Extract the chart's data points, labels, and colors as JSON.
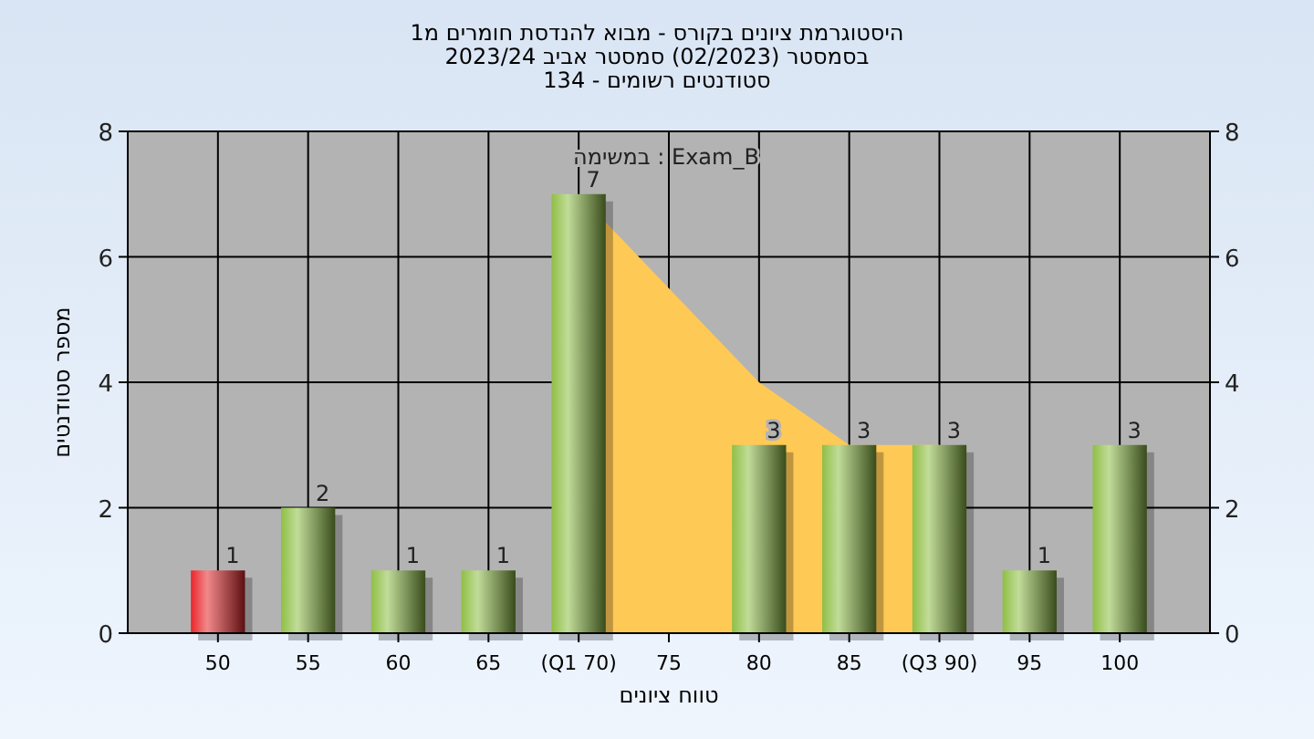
{
  "chart_data": {
    "type": "bar",
    "title": "היסטוגרמת ציונים בקורס - מבוא להנדסת חומרים מ1\nבסמסטר  (02/2023)  סמסטר אביב 2023/24\nסטודנטים רשומים - 134",
    "xlabel": "טווח ציונים",
    "ylabel": "מספר סטודנטים",
    "annotations": [
      "במשימה : Exam_B"
    ],
    "categories": [
      "50",
      "55",
      "60",
      "65",
      "(Q1 70)",
      "75",
      "80",
      "85",
      "(Q3 90)",
      "95",
      "100"
    ],
    "series": [
      {
        "type": "area",
        "color": "#ffc955",
        "values": [
          null,
          null,
          null,
          null,
          7,
          5.5,
          4,
          3,
          3,
          null,
          null
        ]
      },
      {
        "colors": [
          "#e8262b",
          "#8fbf45",
          "#8fbf45",
          "#8fbf45",
          "#8fbf45",
          "#8fbf45",
          "#8fbf45",
          "#8fbf45",
          "#8fbf45",
          "#8fbf45",
          "#8fbf45"
        ],
        "values": [
          1,
          2,
          1,
          1,
          7,
          0,
          3,
          3,
          3,
          1,
          3
        ],
        "value_labels": [
          "1",
          "2",
          "1",
          "1",
          "7",
          null,
          "3",
          "3",
          "3",
          "1",
          "3"
        ]
      }
    ],
    "ylim": [
      0,
      8
    ],
    "yticks": [
      0,
      2,
      4,
      6,
      8
    ],
    "y2lim": [
      0,
      8
    ],
    "y2ticks": [
      0,
      2,
      4,
      6,
      8
    ],
    "grid": true
  }
}
